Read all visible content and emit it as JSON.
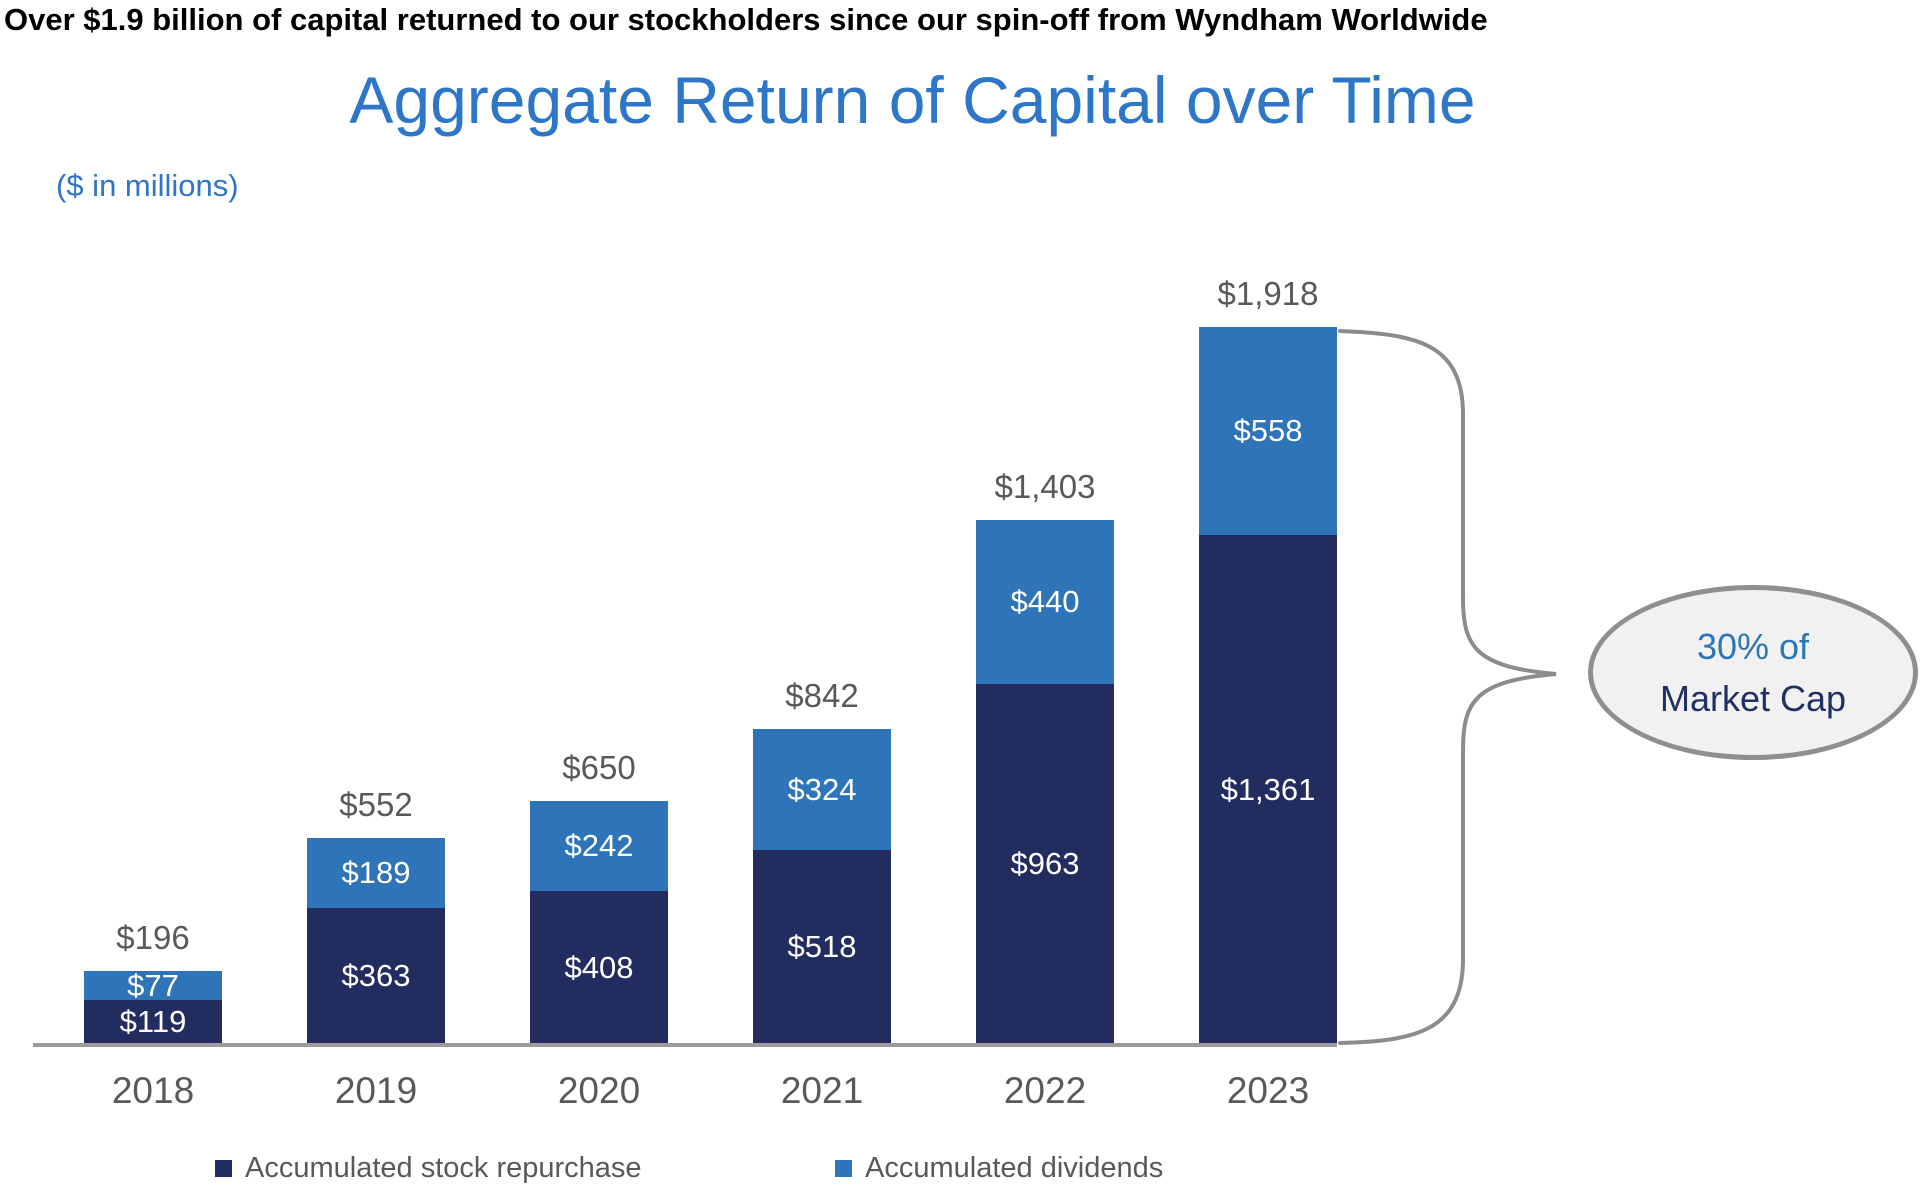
{
  "header": "Over $1.9 billion of capital returned to our stockholders since our spin-off from Wyndham Worldwide",
  "title": "Aggregate Return of Capital over Time",
  "subtitle": "($ in millions)",
  "callout": {
    "line1": "30% of",
    "line2": "Market Cap"
  },
  "colors": {
    "stock_repurchase": "#222C5F",
    "dividends": "#2E74B8",
    "title_blue": "#2E76C8",
    "label_gray": "#595959",
    "axis_gray": "#9B9B9B",
    "brace_gray": "#8C8C8C",
    "callout_fill": "#F1F1F2",
    "callout_border": "#8F8F8F"
  },
  "chart_data": {
    "type": "bar",
    "stacked": true,
    "title": "Aggregate Return of Capital over Time",
    "subtitle": "($ in millions)",
    "xlabel": "",
    "ylabel": "$ in millions",
    "ylim": [
      0,
      2000
    ],
    "grid": false,
    "legend_position": "bottom",
    "categories": [
      "2018",
      "2019",
      "2020",
      "2021",
      "2022",
      "2023"
    ],
    "series": [
      {
        "name": "Accumulated stock repurchase",
        "color": "#222C5F",
        "values": [
          119,
          363,
          408,
          518,
          963,
          1361
        ],
        "labels": [
          "$119",
          "$363",
          "$408",
          "$518",
          "$963",
          "$1,361"
        ]
      },
      {
        "name": "Accumulated dividends",
        "color": "#2E74B8",
        "values": [
          77,
          189,
          242,
          324,
          440,
          558
        ],
        "labels": [
          "$77",
          "$189",
          "$242",
          "$324",
          "$440",
          "$558"
        ]
      }
    ],
    "totals": [
      196,
      552,
      650,
      842,
      1403,
      1918
    ],
    "total_labels": [
      "$196",
      "$552",
      "$650",
      "$842",
      "$1,403",
      "$1,918"
    ],
    "annotation": "30% of Market Cap"
  }
}
